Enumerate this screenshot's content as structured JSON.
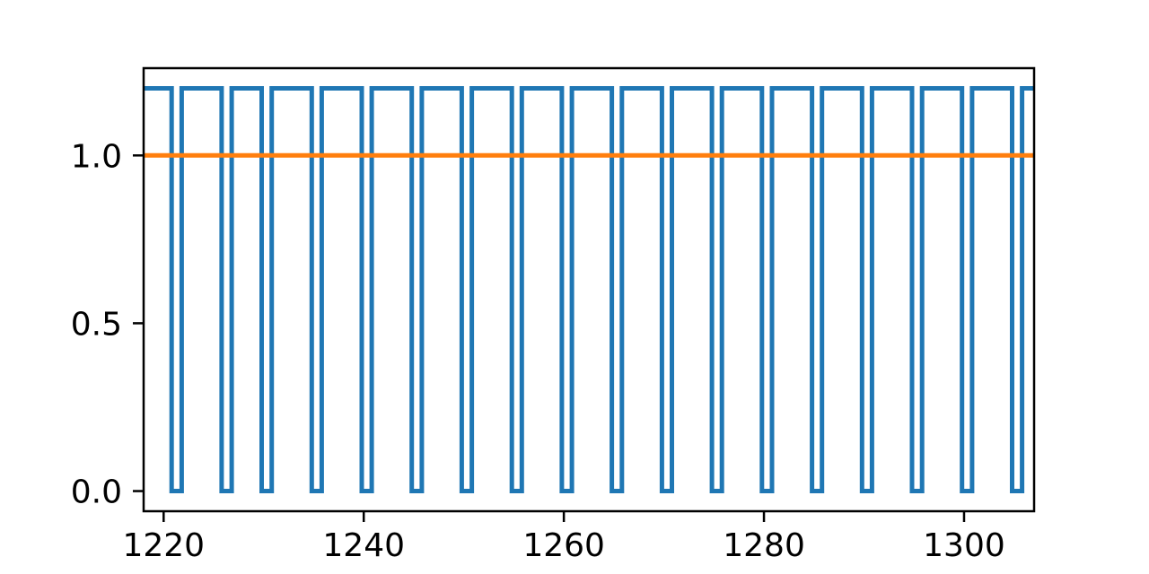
{
  "chart_data": {
    "type": "line",
    "xlim": [
      1218,
      1307
    ],
    "ylim": [
      -0.06,
      1.26
    ],
    "grid": false,
    "xticks": [
      1220,
      1240,
      1260,
      1280,
      1300
    ],
    "yticks": [
      0.0,
      0.5,
      1.0
    ],
    "xtick_labels": [
      "1220",
      "1240",
      "1260",
      "1280",
      "1300"
    ],
    "ytick_labels": [
      "0.0",
      "0.5",
      "1.0"
    ],
    "series": [
      {
        "style": "step",
        "color": "#1f77b4",
        "high": 1.2,
        "low": 0.0,
        "low_intervals": [
          [
            1220.8,
            1221.8
          ],
          [
            1225.8,
            1226.8
          ],
          [
            1229.8,
            1230.8
          ],
          [
            1234.8,
            1235.8
          ],
          [
            1239.8,
            1240.8
          ],
          [
            1244.8,
            1245.8
          ],
          [
            1249.8,
            1250.8
          ],
          [
            1254.8,
            1255.8
          ],
          [
            1259.8,
            1260.8
          ],
          [
            1264.8,
            1265.8
          ],
          [
            1269.8,
            1270.8
          ],
          [
            1274.8,
            1275.8
          ],
          [
            1279.8,
            1280.8
          ],
          [
            1284.8,
            1285.8
          ],
          [
            1289.8,
            1290.8
          ],
          [
            1294.8,
            1295.8
          ],
          [
            1299.8,
            1300.8
          ],
          [
            1304.8,
            1305.8
          ]
        ]
      },
      {
        "style": "line",
        "color": "#ff7f0e",
        "x": [
          1218,
          1307
        ],
        "y": [
          1.0,
          1.0
        ]
      }
    ]
  }
}
